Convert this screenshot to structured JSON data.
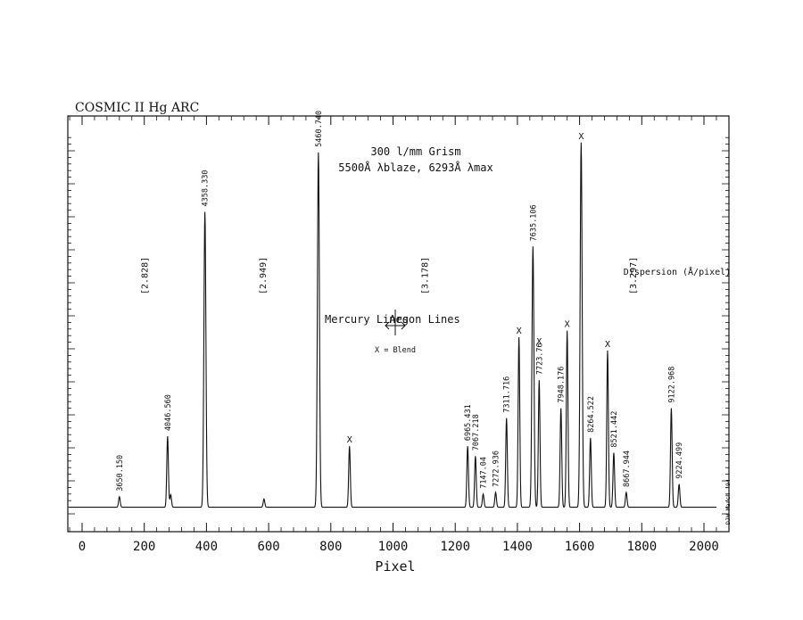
{
  "chart_data": {
    "type": "line",
    "title": "COSMIC II Hg ARC",
    "xlabel": "Pixel",
    "ylabel": "",
    "xlim": [
      -50,
      2080
    ],
    "ylim": [
      0,
      1100
    ],
    "x_ticks": [
      "0",
      "200",
      "400",
      "600",
      "800",
      "1000",
      "1200",
      "1400",
      "1600",
      "1800",
      "2000"
    ],
    "x_tick_values": [
      0,
      200,
      400,
      600,
      800,
      1000,
      1200,
      1400,
      1600,
      1800,
      2000
    ],
    "grid": false,
    "baseline": 20,
    "lines": [
      {
        "pixel": 120,
        "height": 32,
        "label": "3650.150"
      },
      {
        "pixel": 275,
        "height": 215,
        "label": "4046.560"
      },
      {
        "pixel": 285,
        "height": 38,
        "label": ""
      },
      {
        "pixel": 395,
        "height": 895,
        "label": "4358.330"
      },
      {
        "pixel": 585,
        "height": 25,
        "label": ""
      },
      {
        "pixel": 760,
        "height": 1075,
        "label": "5460.740"
      },
      {
        "pixel": 860,
        "height": 185,
        "label": "",
        "blend": true
      },
      {
        "pixel": 1240,
        "height": 185,
        "label": "6965.431"
      },
      {
        "pixel": 1265,
        "height": 155,
        "label": "7067.218"
      },
      {
        "pixel": 1290,
        "height": 40,
        "label": "7147.04"
      },
      {
        "pixel": 1330,
        "height": 45,
        "label": "7272.936"
      },
      {
        "pixel": 1365,
        "height": 270,
        "label": "7311.716"
      },
      {
        "pixel": 1405,
        "height": 515,
        "label": "",
        "blend": true
      },
      {
        "pixel": 1450,
        "height": 790,
        "label": "7635.106"
      },
      {
        "pixel": 1470,
        "height": 385,
        "label": "7723.76",
        "blend": true
      },
      {
        "pixel": 1540,
        "height": 300,
        "label": "7948.176"
      },
      {
        "pixel": 1560,
        "height": 535,
        "label": "",
        "blend": true
      },
      {
        "pixel": 1605,
        "height": 1105,
        "label": "",
        "blend": true
      },
      {
        "pixel": 1635,
        "height": 210,
        "label": "8264.522"
      },
      {
        "pixel": 1690,
        "height": 475,
        "label": "",
        "blend": true
      },
      {
        "pixel": 1710,
        "height": 165,
        "label": "8521.442"
      },
      {
        "pixel": 1750,
        "height": 45,
        "label": "8667.944"
      },
      {
        "pixel": 1895,
        "height": 300,
        "label": "9122.968"
      },
      {
        "pixel": 1920,
        "height": 70,
        "label": "9224.499"
      }
    ],
    "annotations": {
      "grism_line1": "300 l/mm Grism",
      "grism_line2": "5500Å λblaze, 6293Å λmax",
      "mercury": "Mercury Lines",
      "argon": "Argon Lines",
      "blend_key": "X = Blend",
      "dispersion": "Dispersion (Å/pixel)",
      "blend_marker": "X",
      "signature": "DJW March '94"
    },
    "dispersion_values": [
      {
        "pixel": 200,
        "label": "[2.828]"
      },
      {
        "pixel": 580,
        "label": "[2.949]"
      },
      {
        "pixel": 1100,
        "label": "[3.178]"
      },
      {
        "pixel": 1770,
        "label": "[3.297]"
      }
    ]
  }
}
